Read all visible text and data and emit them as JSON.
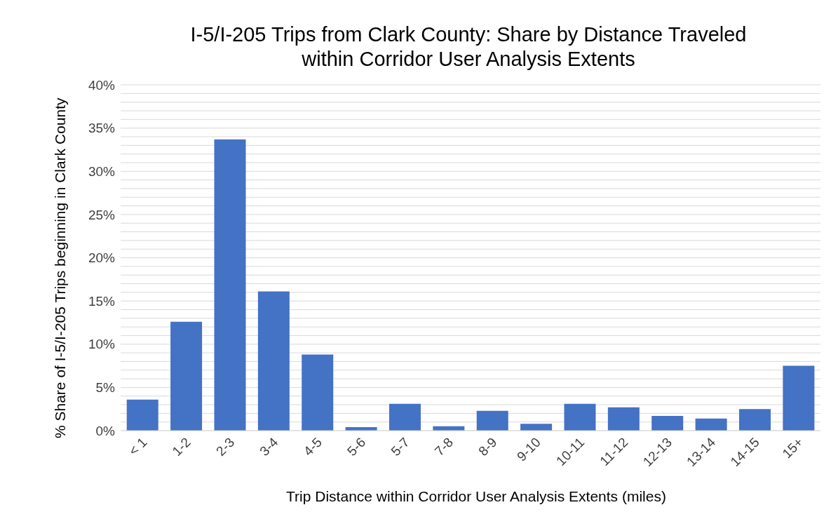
{
  "chart_data": {
    "type": "bar",
    "title": "I-5/I-205 Trips from Clark County: Share by Distance Traveled within Corridor User Analysis Extents",
    "xlabel": "Trip Distance within Corridor User Analysis Extents (miles)",
    "ylabel": "% Share of I-5/I-205 Trips beginning in Clark County",
    "categories": [
      "< 1",
      "1-2",
      "2-3",
      "3-4",
      "4-5",
      "5-6",
      "5-7",
      "7-8",
      "8-9",
      "9-10",
      "10-11",
      "11-12",
      "12-13",
      "13-14",
      "14-15",
      "15+"
    ],
    "values": [
      3.6,
      12.6,
      33.7,
      16.1,
      8.8,
      0.4,
      3.1,
      0.5,
      2.3,
      0.8,
      3.1,
      2.7,
      1.7,
      1.4,
      2.5,
      7.5
    ],
    "color": "#4472c4",
    "ylim": [
      0,
      40
    ],
    "yticks": [
      {
        "value": 0,
        "label": "0%"
      },
      {
        "value": 1,
        "label": null
      },
      {
        "value": 2,
        "label": null
      },
      {
        "value": 3,
        "label": null
      },
      {
        "value": 4,
        "label": null
      },
      {
        "value": 5,
        "label": "5%"
      },
      {
        "value": 6,
        "label": null
      },
      {
        "value": 7,
        "label": null
      },
      {
        "value": 8,
        "label": null
      },
      {
        "value": 9,
        "label": null
      },
      {
        "value": 10,
        "label": "10%"
      },
      {
        "value": 11,
        "label": null
      },
      {
        "value": 12,
        "label": null
      },
      {
        "value": 13,
        "label": null
      },
      {
        "value": 14,
        "label": null
      },
      {
        "value": 15,
        "label": "15%"
      },
      {
        "value": 16,
        "label": null
      },
      {
        "value": 17,
        "label": null
      },
      {
        "value": 18,
        "label": null
      },
      {
        "value": 19,
        "label": null
      },
      {
        "value": 20,
        "label": "20%"
      },
      {
        "value": 21,
        "label": null
      },
      {
        "value": 22,
        "label": null
      },
      {
        "value": 23,
        "label": null
      },
      {
        "value": 24,
        "label": null
      },
      {
        "value": 25,
        "label": "25%"
      },
      {
        "value": 26,
        "label": null
      },
      {
        "value": 27,
        "label": null
      },
      {
        "value": 28,
        "label": null
      },
      {
        "value": 29,
        "label": null
      },
      {
        "value": 30,
        "label": "30%"
      },
      {
        "value": 31,
        "label": null
      },
      {
        "value": 32,
        "label": null
      },
      {
        "value": 33,
        "label": null
      },
      {
        "value": 34,
        "label": null
      },
      {
        "value": 35,
        "label": "35%"
      },
      {
        "value": 36,
        "label": null
      },
      {
        "value": 37,
        "label": null
      },
      {
        "value": 38,
        "label": null
      },
      {
        "value": 39,
        "label": null
      },
      {
        "value": 40,
        "label": "40%"
      }
    ],
    "grid": "y"
  }
}
